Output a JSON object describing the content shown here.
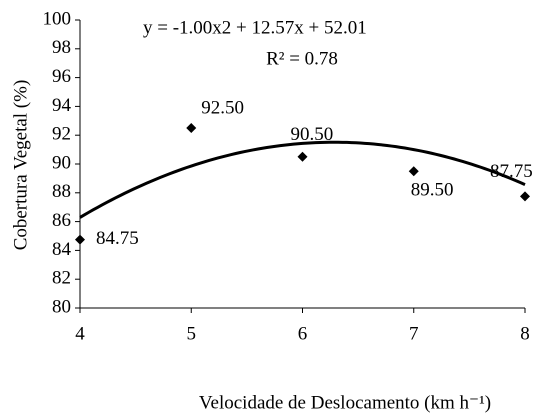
{
  "chart_data": {
    "type": "scatter",
    "x_label": "Velocidade  de Deslocamento (km h⁻¹)",
    "y_label": "Cobertura Vegetal (%)",
    "x": [
      4,
      5,
      6,
      7,
      8
    ],
    "values": [
      84.75,
      92.5,
      90.5,
      89.5,
      87.75
    ],
    "value_labels": [
      "84.75",
      "92.50",
      "90.50",
      "89.50",
      "87.75"
    ],
    "color": "#000000",
    "xlim": [
      4,
      8
    ],
    "xticks": [
      4,
      5,
      6,
      7,
      8
    ],
    "ylim": [
      80,
      100
    ],
    "yticks": [
      80,
      82,
      84,
      86,
      88,
      90,
      92,
      94,
      96,
      98,
      100
    ],
    "trendline": {
      "type": "polynomial",
      "equation": "y = -1.00x2 + 12.57x + 52.01",
      "r2_label": "R² = 0.78",
      "coefficients": [
        -1,
        12.57,
        52.01
      ]
    }
  }
}
